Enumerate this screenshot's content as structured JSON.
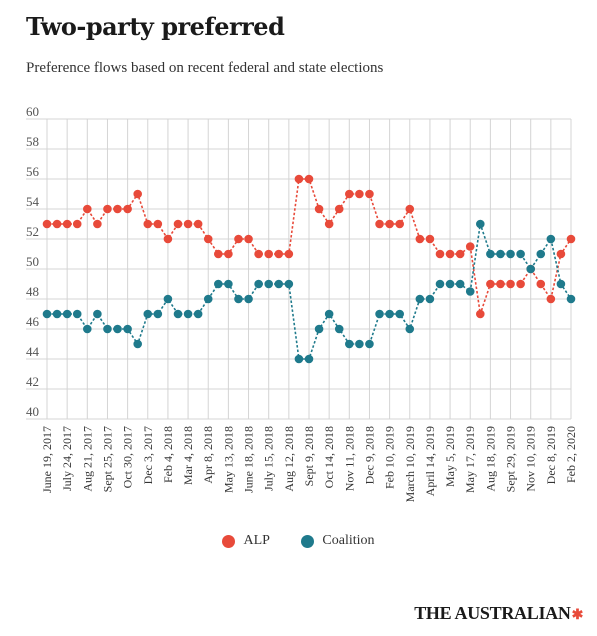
{
  "chart_data": {
    "type": "line",
    "title": "Two-party preferred",
    "subtitle": "Preference flows based on recent federal and state elections",
    "ylim": [
      40,
      60
    ],
    "yticks": [
      40,
      42,
      44,
      46,
      48,
      50,
      52,
      54,
      56,
      58,
      60
    ],
    "grid": true,
    "legend_position": "bottom-center",
    "x": [
      "June 19, 2017",
      "",
      "July 24, 2017",
      "",
      "Aug 21, 2017",
      "",
      "Sept 25, 2017",
      "",
      "Oct 30, 2017",
      "",
      "Dec 3, 2017",
      "",
      "Feb 4, 2018",
      "",
      "Mar 4, 2018",
      "",
      "Apr 8, 2018",
      "",
      "May 13, 2018",
      "",
      "June 18, 2018",
      "",
      "July 15, 2018",
      "",
      "Aug 12, 2018",
      "",
      "Sept 9, 2018",
      "",
      "Oct 14, 2018",
      "",
      "Nov 11, 2018",
      "",
      "Dec 9, 2018",
      "",
      "Feb 10, 2019",
      "",
      "March 10, 2019",
      "",
      "April 14, 2019",
      "",
      "May 5, 2019",
      "",
      "May 17, 2019",
      "",
      "Aug 18, 2019",
      "",
      "Sept 29, 2019",
      "",
      "Nov 10, 2019",
      "",
      "Dec 8, 2019",
      "",
      "Feb 2, 2020"
    ],
    "series": [
      {
        "name": "ALP",
        "color": "#e84a3a",
        "values": [
          53,
          53,
          53,
          53,
          54,
          53,
          54,
          54,
          54,
          55,
          53,
          53,
          52,
          53,
          53,
          53,
          52,
          51,
          51,
          52,
          52,
          51,
          51,
          51,
          51,
          56,
          56,
          54,
          53,
          54,
          55,
          55,
          55,
          53,
          53,
          53,
          54,
          52,
          52,
          51,
          51,
          51,
          51.5,
          47,
          49,
          49,
          49,
          49,
          50,
          49,
          48,
          51,
          52
        ]
      },
      {
        "name": "Coalition",
        "color": "#1f7a8c",
        "values": [
          47,
          47,
          47,
          47,
          46,
          47,
          46,
          46,
          46,
          45,
          47,
          47,
          48,
          47,
          47,
          47,
          48,
          49,
          49,
          48,
          48,
          49,
          49,
          49,
          49,
          44,
          44,
          46,
          47,
          46,
          45,
          45,
          45,
          47,
          47,
          47,
          46,
          48,
          48,
          49,
          49,
          49,
          48.5,
          53,
          51,
          51,
          51,
          51,
          50,
          51,
          52,
          49,
          48
        ]
      }
    ]
  },
  "legend": {
    "alp_label": "ALP",
    "coalition_label": "Coalition",
    "alp_color": "#e84a3a",
    "coalition_color": "#1f7a8c"
  },
  "brand": {
    "name": "THE AUSTRALIAN",
    "mark_icon": "brand-mark-icon"
  }
}
